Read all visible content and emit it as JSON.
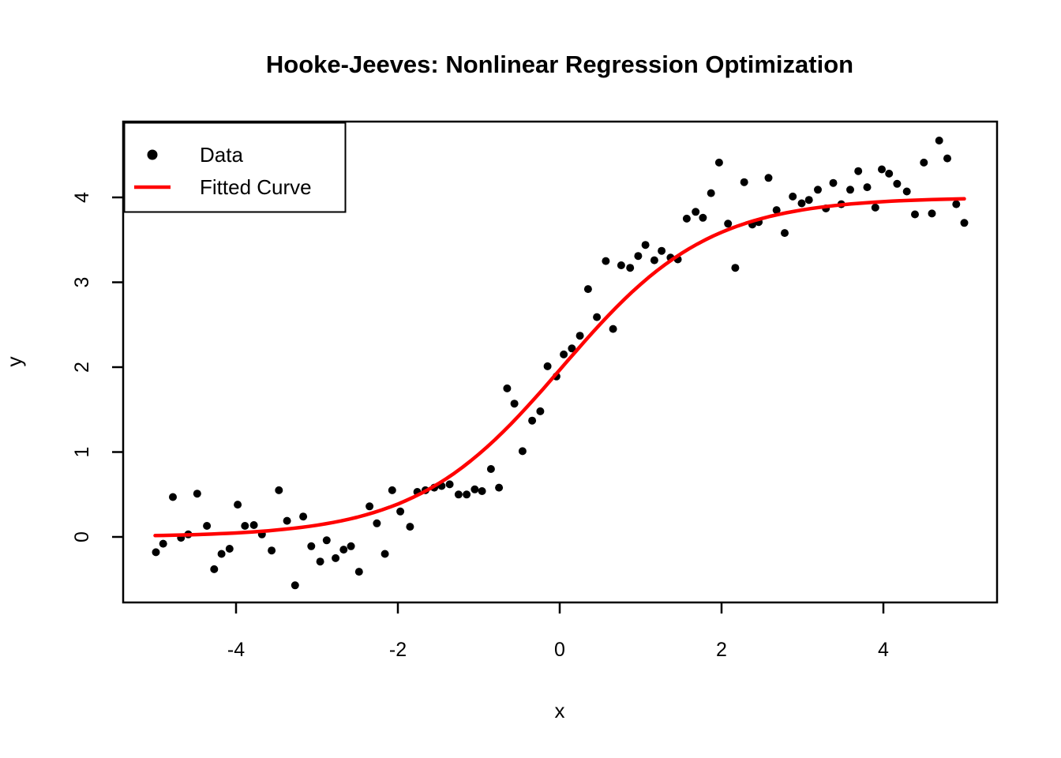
{
  "figure": {
    "background": "#FFFFFF",
    "foreground": "#000000"
  },
  "chart_data": {
    "type": "scatter",
    "title": "Hooke-Jeeves: Nonlinear Regression Optimization",
    "xlabel": "x",
    "ylabel": "y",
    "xlim": [
      -5.39,
      5.39
    ],
    "ylim": [
      -0.77,
      4.89
    ],
    "grid": false,
    "x_ticks": {
      "values": [
        -4,
        -2,
        0,
        2,
        4
      ],
      "labels": [
        "-4",
        "-2",
        "0",
        "2",
        "4"
      ]
    },
    "y_ticks": {
      "values": [
        0,
        1,
        2,
        3,
        4
      ],
      "labels": [
        "0",
        "1",
        "2",
        "3",
        "4"
      ]
    },
    "colors": {
      "points": "#000000",
      "curve": "#FF0000",
      "axis": "#000000"
    },
    "legend": {
      "position": "topleft",
      "items": [
        {
          "label": "Data",
          "type": "point",
          "color": "#000000"
        },
        {
          "label": "Fitted Curve",
          "type": "line",
          "color": "#FF0000"
        }
      ]
    },
    "series": [
      {
        "name": "Data",
        "type": "scatter",
        "color": "#000000",
        "points": [
          [
            -4.99,
            -0.18
          ],
          [
            -4.9,
            -0.08
          ],
          [
            -4.78,
            0.47
          ],
          [
            -4.68,
            -0.01
          ],
          [
            -4.59,
            0.03
          ],
          [
            -4.48,
            0.51
          ],
          [
            -4.36,
            0.13
          ],
          [
            -4.27,
            -0.38
          ],
          [
            -4.18,
            -0.2
          ],
          [
            -4.08,
            -0.14
          ],
          [
            -3.98,
            0.38
          ],
          [
            -3.89,
            0.13
          ],
          [
            -3.78,
            0.14
          ],
          [
            -3.68,
            0.03
          ],
          [
            -3.56,
            -0.16
          ],
          [
            -3.47,
            0.55
          ],
          [
            -3.37,
            0.19
          ],
          [
            -3.27,
            -0.57
          ],
          [
            -3.17,
            0.24
          ],
          [
            -3.07,
            -0.11
          ],
          [
            -2.96,
            -0.29
          ],
          [
            -2.88,
            -0.04
          ],
          [
            -2.77,
            -0.25
          ],
          [
            -2.67,
            -0.15
          ],
          [
            -2.58,
            -0.11
          ],
          [
            -2.48,
            -0.41
          ],
          [
            -2.35,
            0.36
          ],
          [
            -2.26,
            0.16
          ],
          [
            -2.16,
            -0.2
          ],
          [
            -2.07,
            0.55
          ],
          [
            -1.97,
            0.3
          ],
          [
            -1.85,
            0.12
          ],
          [
            -1.76,
            0.53
          ],
          [
            -1.66,
            0.55
          ],
          [
            -1.55,
            0.58
          ],
          [
            -1.46,
            0.6
          ],
          [
            -1.36,
            0.62
          ],
          [
            -1.25,
            0.5
          ],
          [
            -1.15,
            0.5
          ],
          [
            -1.05,
            0.56
          ],
          [
            -0.96,
            0.54
          ],
          [
            -0.85,
            0.8
          ],
          [
            -0.75,
            0.58
          ],
          [
            -0.65,
            1.75
          ],
          [
            -0.56,
            1.57
          ],
          [
            -0.46,
            1.01
          ],
          [
            -0.34,
            1.37
          ],
          [
            -0.24,
            1.48
          ],
          [
            -0.15,
            2.01
          ],
          [
            -0.04,
            1.89
          ],
          [
            0.05,
            2.15
          ],
          [
            0.15,
            2.22
          ],
          [
            0.25,
            2.37
          ],
          [
            0.35,
            2.92
          ],
          [
            0.46,
            2.59
          ],
          [
            0.57,
            3.25
          ],
          [
            0.66,
            2.45
          ],
          [
            0.76,
            3.2
          ],
          [
            0.87,
            3.17
          ],
          [
            0.97,
            3.31
          ],
          [
            1.06,
            3.44
          ],
          [
            1.17,
            3.26
          ],
          [
            1.26,
            3.37
          ],
          [
            1.37,
            3.29
          ],
          [
            1.46,
            3.27
          ],
          [
            1.57,
            3.75
          ],
          [
            1.68,
            3.83
          ],
          [
            1.77,
            3.76
          ],
          [
            1.87,
            4.05
          ],
          [
            1.97,
            4.41
          ],
          [
            2.08,
            3.69
          ],
          [
            2.17,
            3.17
          ],
          [
            2.28,
            4.18
          ],
          [
            2.38,
            3.68
          ],
          [
            2.46,
            3.71
          ],
          [
            2.58,
            4.23
          ],
          [
            2.68,
            3.85
          ],
          [
            2.78,
            3.58
          ],
          [
            2.88,
            4.01
          ],
          [
            2.99,
            3.93
          ],
          [
            3.08,
            3.97
          ],
          [
            3.19,
            4.09
          ],
          [
            3.29,
            3.87
          ],
          [
            3.38,
            4.17
          ],
          [
            3.48,
            3.92
          ],
          [
            3.59,
            4.09
          ],
          [
            3.69,
            4.31
          ],
          [
            3.8,
            4.12
          ],
          [
            3.9,
            3.88
          ],
          [
            3.98,
            4.33
          ],
          [
            4.07,
            4.28
          ],
          [
            4.17,
            4.16
          ],
          [
            4.29,
            4.07
          ],
          [
            4.39,
            3.8
          ],
          [
            4.5,
            4.41
          ],
          [
            4.6,
            3.81
          ],
          [
            4.69,
            4.67
          ],
          [
            4.79,
            4.46
          ],
          [
            4.9,
            3.92
          ],
          [
            5.0,
            3.7
          ]
        ]
      },
      {
        "name": "Fitted Curve",
        "type": "line",
        "color": "#FF0000",
        "model": "logistic",
        "formula": "y = a / (1 + exp(-b*(x - c)))",
        "params": {
          "a": 4.0,
          "b": 1.1,
          "c": 0.03
        },
        "x_range": [
          -5,
          5
        ]
      }
    ]
  }
}
